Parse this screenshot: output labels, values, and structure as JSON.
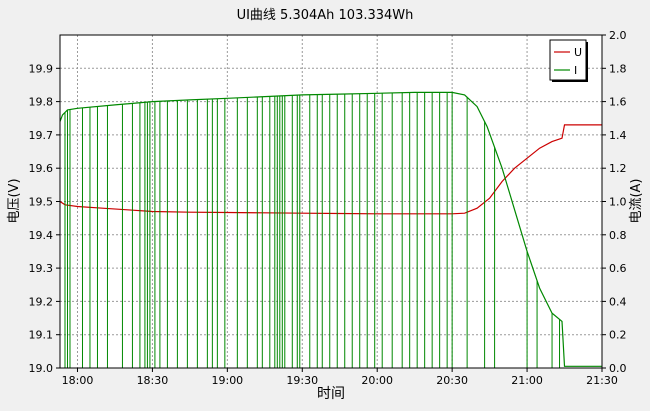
{
  "chart_data": {
    "type": "line",
    "title": "UI曲线 5.304Ah 103.334Wh",
    "xlabel": "时间",
    "ylabel": "电压(V)",
    "y2label": "电流(A)",
    "x_ticks": [
      "18:00",
      "18:30",
      "19:00",
      "19:30",
      "20:00",
      "20:30",
      "21:00",
      "21:30"
    ],
    "xlim": [
      "17:53",
      "21:30"
    ],
    "ylim": [
      19.0,
      20.0
    ],
    "y_ticks": [
      "19.0",
      "19.1",
      "19.2",
      "19.3",
      "19.4",
      "19.5",
      "19.6",
      "19.7",
      "19.8",
      "19.9"
    ],
    "y2lim": [
      0.0,
      2.0
    ],
    "y2_ticks": [
      "0.0",
      "0.2",
      "0.4",
      "0.6",
      "0.8",
      "1.0",
      "1.2",
      "1.4",
      "1.6",
      "1.8",
      "2.0"
    ],
    "grid": true,
    "legend_position": "top-right",
    "series": [
      {
        "name": "U",
        "axis": "left",
        "color": "#cc0000",
        "points": [
          [
            "17:53",
            19.5
          ],
          [
            "17:55",
            19.49
          ],
          [
            "18:00",
            19.485
          ],
          [
            "18:10",
            19.48
          ],
          [
            "18:20",
            19.475
          ],
          [
            "18:30",
            19.47
          ],
          [
            "18:45",
            19.468
          ],
          [
            "19:00",
            19.467
          ],
          [
            "19:15",
            19.466
          ],
          [
            "19:30",
            19.465
          ],
          [
            "19:45",
            19.464
          ],
          [
            "20:00",
            19.463
          ],
          [
            "20:15",
            19.463
          ],
          [
            "20:30",
            19.463
          ],
          [
            "20:35",
            19.465
          ],
          [
            "20:40",
            19.48
          ],
          [
            "20:45",
            19.51
          ],
          [
            "20:50",
            19.56
          ],
          [
            "20:55",
            19.6
          ],
          [
            "21:00",
            19.63
          ],
          [
            "21:05",
            19.66
          ],
          [
            "21:10",
            19.68
          ],
          [
            "21:14",
            19.69
          ],
          [
            "21:15",
            19.73
          ],
          [
            "21:30",
            19.73
          ]
        ]
      },
      {
        "name": "I",
        "axis": "right",
        "color": "#008800",
        "points": [
          [
            "17:53",
            1.48
          ],
          [
            "17:54",
            1.52
          ],
          [
            "17:56",
            1.55
          ],
          [
            "18:00",
            1.56
          ],
          [
            "18:15",
            1.58
          ],
          [
            "18:30",
            1.6
          ],
          [
            "18:45",
            1.61
          ],
          [
            "19:00",
            1.62
          ],
          [
            "19:15",
            1.63
          ],
          [
            "19:30",
            1.64
          ],
          [
            "19:45",
            1.645
          ],
          [
            "20:00",
            1.65
          ],
          [
            "20:15",
            1.655
          ],
          [
            "20:30",
            1.655
          ],
          [
            "20:35",
            1.64
          ],
          [
            "20:40",
            1.57
          ],
          [
            "20:44",
            1.45
          ],
          [
            "20:50",
            1.2
          ],
          [
            "20:55",
            0.95
          ],
          [
            "21:00",
            0.7
          ],
          [
            "21:05",
            0.48
          ],
          [
            "21:10",
            0.33
          ],
          [
            "21:14",
            0.28
          ],
          [
            "21:15",
            0.01
          ],
          [
            "21:30",
            0.01
          ]
        ],
        "dropouts_to_zero": [
          "17:55",
          "17:56",
          "17:57",
          "18:02",
          "18:05",
          "18:08",
          "18:12",
          "18:18",
          "18:22",
          "18:25",
          "18:27",
          "18:28",
          "18:29",
          "18:31",
          "18:33",
          "18:36",
          "18:40",
          "18:44",
          "18:48",
          "18:52",
          "18:54",
          "18:56",
          "18:59",
          "19:04",
          "19:08",
          "19:12",
          "19:14",
          "19:17",
          "19:19",
          "19:20",
          "19:21",
          "19:22",
          "19:23",
          "19:26",
          "19:28",
          "19:29",
          "19:33",
          "19:36",
          "19:38",
          "19:41",
          "19:44",
          "19:47",
          "19:50",
          "19:53",
          "19:56",
          "19:59",
          "20:02",
          "20:06",
          "20:10",
          "20:13",
          "20:16",
          "20:19",
          "20:22",
          "20:25",
          "20:28",
          "20:30",
          "20:36",
          "20:43",
          "20:47",
          "21:00",
          "21:04",
          "21:10",
          "21:13"
        ]
      }
    ]
  }
}
